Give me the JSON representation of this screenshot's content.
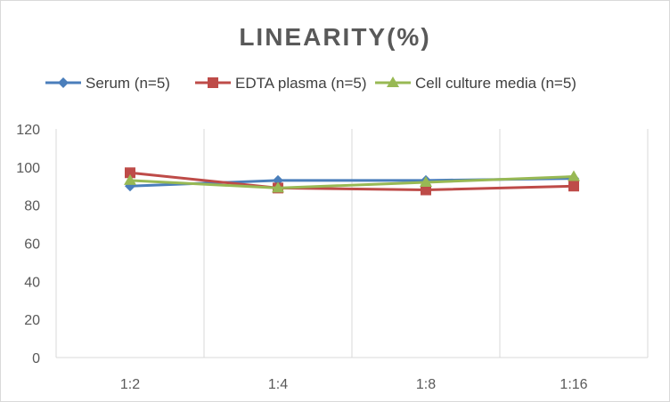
{
  "chart_data": {
    "type": "line",
    "title": "LINEARITY(%)",
    "categories": [
      "1:2",
      "1:4",
      "1:8",
      "1:16"
    ],
    "ylim": [
      0,
      120
    ],
    "yticks": [
      0,
      20,
      40,
      60,
      80,
      100,
      120
    ],
    "grid": "vertical",
    "legend": "top",
    "series": [
      {
        "name": "Serum (n=5)",
        "values": [
          90,
          93,
          93,
          94
        ],
        "color": "#4a7ebb",
        "marker": "diamond"
      },
      {
        "name": "EDTA plasma (n=5)",
        "values": [
          97,
          89,
          88,
          90
        ],
        "color": "#be4b48",
        "marker": "square"
      },
      {
        "name": "Cell culture media (n=5)",
        "values": [
          93,
          89,
          92,
          95
        ],
        "color": "#98b954",
        "marker": "triangle"
      }
    ]
  }
}
